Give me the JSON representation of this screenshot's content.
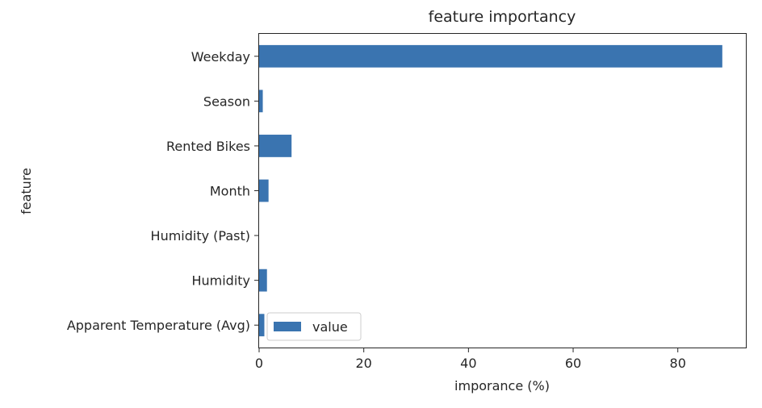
{
  "chart_data": {
    "type": "bar",
    "orientation": "horizontal",
    "title": "feature importancy",
    "xlabel": "imporance (%)",
    "ylabel": "feature",
    "categories": [
      "Apparent Temperature (Avg)",
      "Humidity",
      "Humidity (Past)",
      "Month",
      "Rented Bikes",
      "Season",
      "Weekday"
    ],
    "series": [
      {
        "name": "value",
        "values": [
          1.0,
          1.5,
          0.0,
          1.8,
          6.2,
          0.7,
          88.5
        ]
      }
    ],
    "xlim": [
      0,
      93
    ],
    "xticks": [
      0,
      20,
      40,
      60,
      80
    ],
    "grid": false,
    "legend_position": "lower-left",
    "bar_color": "#3a74b0"
  }
}
